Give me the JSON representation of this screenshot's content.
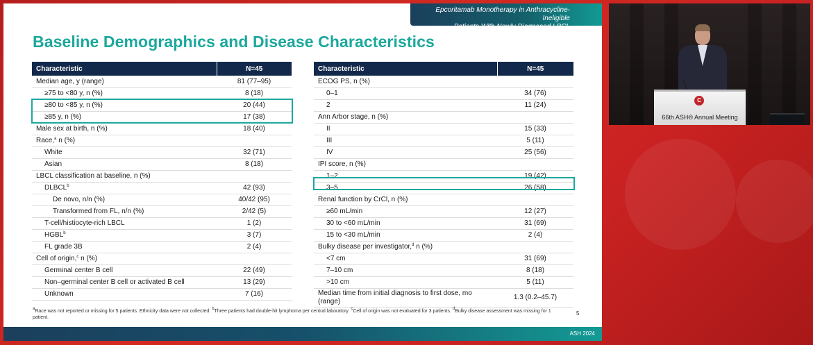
{
  "banner": {
    "line1": "Epcoritamab Monotherapy in Anthracycline-Ineligible",
    "line2": "Patients With Newly Diagnosed LBCL"
  },
  "title": "Baseline Demographics and Disease Characteristics",
  "left_table": {
    "headers": [
      "Characteristic",
      "N=45"
    ],
    "rows": [
      {
        "label": "Median age, y (range)",
        "value": "81 (77–95)"
      },
      {
        "label": "≥75 to <80 y, n (%)",
        "value": "8 (18)"
      },
      {
        "label": "≥80 to <85 y, n (%)",
        "value": "20 (44)"
      },
      {
        "label": "≥85 y, n (%)",
        "value": "17 (38)"
      },
      {
        "label": "Male sex at birth, n (%)",
        "value": "18 (40)"
      },
      {
        "label": "Race,",
        "sup": "a",
        "label_tail": " n (%)",
        "value": ""
      },
      {
        "label": "White",
        "value": "32 (71)"
      },
      {
        "label": "Asian",
        "value": "8 (18)"
      },
      {
        "label": "LBCL classification at baseline, n (%)",
        "value": ""
      },
      {
        "label": "DLBCL",
        "sup": "b",
        "value": "42 (93)"
      },
      {
        "label": "De novo, n/n (%)",
        "value": "40/42 (95)"
      },
      {
        "label": "Transformed from FL, n/n (%)",
        "value": "2/42 (5)"
      },
      {
        "label": "T-cell/histiocyte-rich LBCL",
        "value": "1 (2)"
      },
      {
        "label": "HGBL",
        "sup": "b",
        "value": "3 (7)"
      },
      {
        "label": "FL grade 3B",
        "value": "2 (4)"
      },
      {
        "label": "Cell of origin,",
        "sup": "c",
        "label_tail": " n (%)",
        "value": ""
      },
      {
        "label": "Germinal center B cell",
        "value": "22 (49)"
      },
      {
        "label": "Non–germinal center B cell or activated B cell",
        "value": "13 (29)"
      },
      {
        "label": "Unknown",
        "value": "7 (16)"
      }
    ]
  },
  "right_table": {
    "headers": [
      "Characteristic",
      "N=45"
    ],
    "rows": [
      {
        "label": "ECOG PS, n (%)",
        "value": ""
      },
      {
        "label": "0–1",
        "value": "34 (76)"
      },
      {
        "label": "2",
        "value": "11 (24)"
      },
      {
        "label": "Ann Arbor stage, n (%)",
        "value": ""
      },
      {
        "label": "II",
        "value": "15 (33)"
      },
      {
        "label": "III",
        "value": "5 (11)"
      },
      {
        "label": "IV",
        "value": "25 (56)"
      },
      {
        "label": "IPI score, n (%)",
        "value": ""
      },
      {
        "label": "1–2",
        "value": "19 (42)"
      },
      {
        "label": "3–5",
        "value": "26 (58)"
      },
      {
        "label": "Renal function by CrCl, n (%)",
        "value": ""
      },
      {
        "label": "≥60 mL/min",
        "value": "12 (27)"
      },
      {
        "label": "30 to <60 mL/min",
        "value": "31 (69)"
      },
      {
        "label": "15 to <30 mL/min",
        "value": "2 (4)"
      },
      {
        "label": "Bulky disease per investigator,",
        "sup": "d",
        "label_tail": " n (%)",
        "value": ""
      },
      {
        "label": "<7 cm",
        "value": "31 (69)"
      },
      {
        "label": "7–10 cm",
        "value": "8 (18)"
      },
      {
        "label": ">10 cm",
        "value": "5 (11)"
      },
      {
        "label": "Median time from initial diagnosis to first dose, mo (range)",
        "value": "1.3 (0.2–45.7)"
      }
    ]
  },
  "footnote": {
    "a_sup": "a",
    "a_text": "Race was not reported or missing for 5 patients. Ethnicity data were not collected. ",
    "b_sup": "b",
    "b_text": "Three patients had double-hit lymphoma per central laboratory. ",
    "c_sup": "c",
    "c_text": "Cell of origin was not evaluated for 3 patients. ",
    "d_sup": "d",
    "d_text": "Bulky disease assessment was missing for 1 patient."
  },
  "page_number": "5",
  "footer_label": "ASH 2024",
  "video": {
    "podium_logo": "C",
    "podium_text": "66th ASH® Annual Meeting"
  },
  "colors": {
    "accent_teal": "#1ca89d",
    "header_navy": "#13294b",
    "background_red": "#c92222"
  }
}
